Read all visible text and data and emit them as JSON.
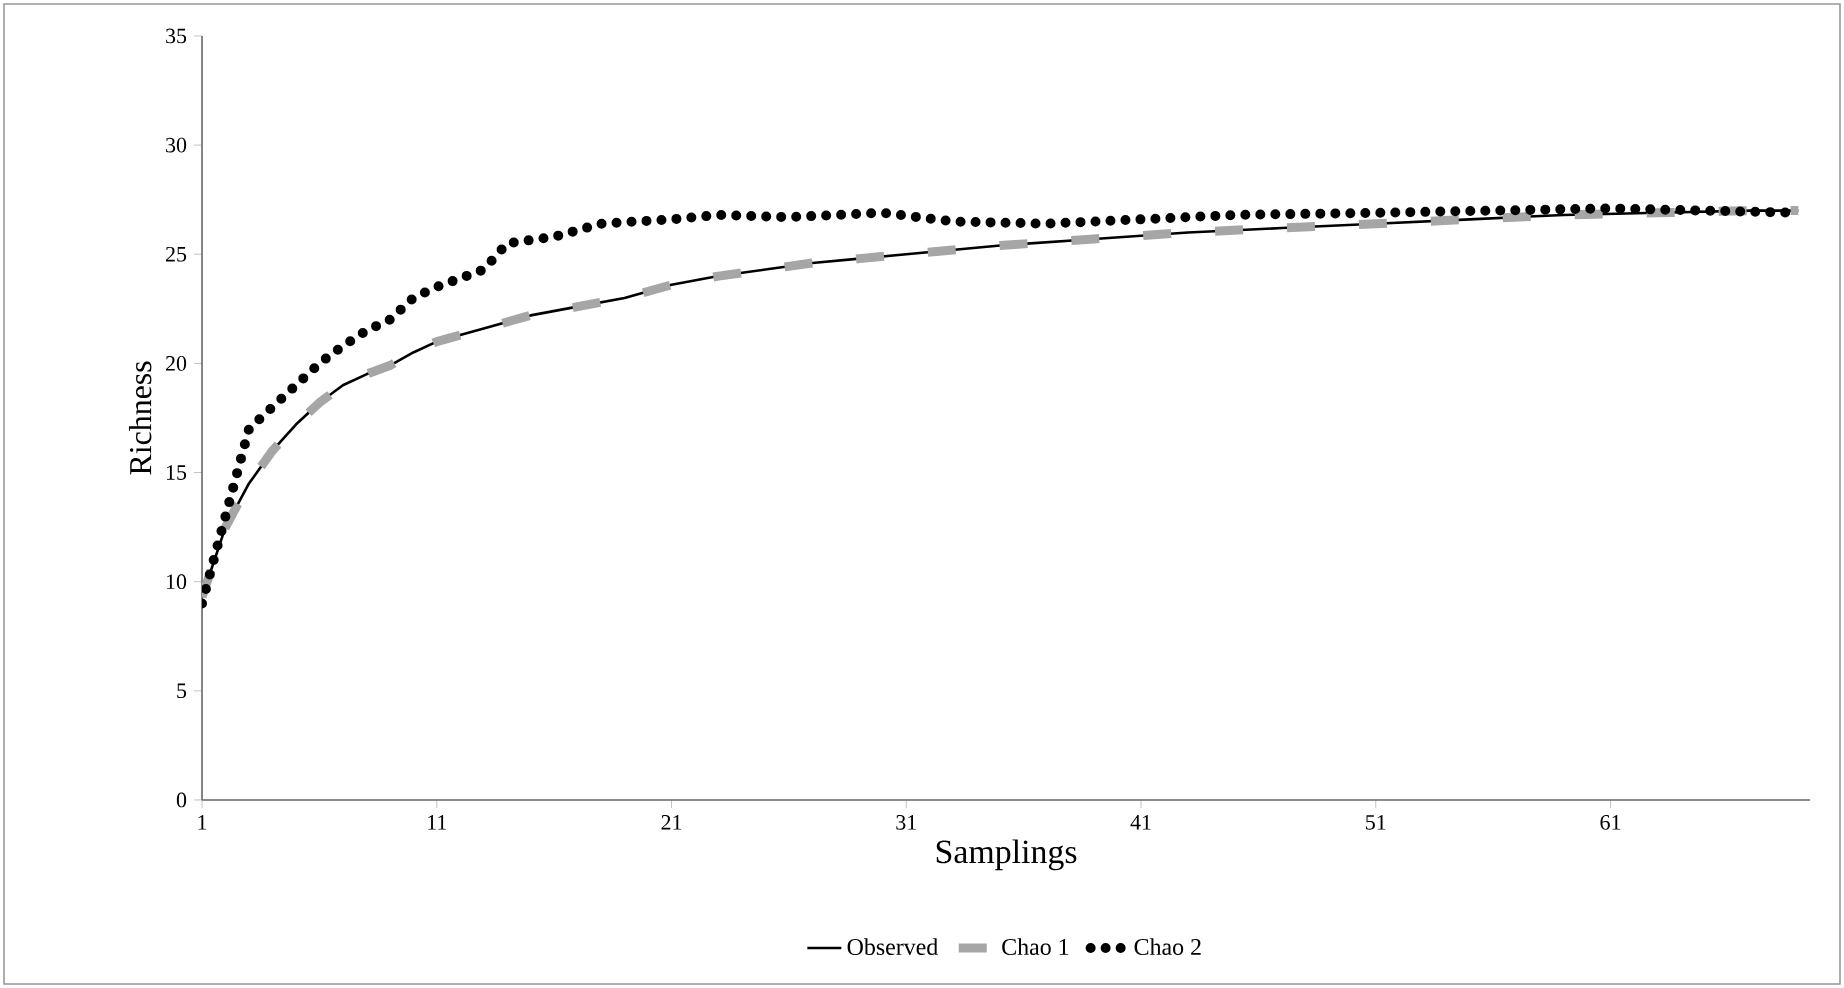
{
  "chart_data": {
    "type": "line",
    "xlabel": "Samplings",
    "ylabel": "Richness",
    "xlim": [
      1,
      69.5
    ],
    "xticks": [
      1,
      11,
      21,
      31,
      41,
      51,
      61
    ],
    "ylim": [
      0,
      35
    ],
    "yticks": [
      0,
      5,
      10,
      15,
      20,
      25,
      30,
      35
    ],
    "grid": false,
    "legend": "bottom",
    "marker": "none",
    "series": [
      {
        "name": "Observed",
        "color": "#000000",
        "line_style": "solid",
        "x": [
          1,
          2,
          3,
          4,
          5,
          6,
          7,
          8,
          9,
          10,
          11,
          13,
          15,
          17,
          19,
          21,
          23,
          25,
          27,
          29,
          31,
          35,
          39,
          43,
          47,
          51,
          55,
          59,
          63,
          67,
          69
        ],
        "values": [
          9.3,
          12.5,
          14.5,
          16,
          17.2,
          18.2,
          19,
          19.5,
          19.9,
          20.5,
          21,
          21.6,
          22.2,
          22.6,
          23,
          23.6,
          24,
          24.3,
          24.6,
          24.8,
          25,
          25.4,
          25.7,
          26,
          26.2,
          26.4,
          26.6,
          26.8,
          26.9,
          27,
          27
        ]
      },
      {
        "name": "Chao 1",
        "color": "#a6a6a6",
        "line_style": "dashed",
        "x": [
          1,
          2,
          3,
          4,
          5,
          6,
          7,
          8,
          9,
          10,
          11,
          13,
          15,
          17,
          19,
          21,
          23,
          25,
          27,
          29,
          31,
          35,
          39,
          43,
          47,
          51,
          55,
          59,
          63,
          67,
          69
        ],
        "values": [
          9.3,
          12.5,
          14.5,
          16,
          17.2,
          18.2,
          19,
          19.5,
          19.9,
          20.5,
          21,
          21.6,
          22.2,
          22.6,
          23,
          23.6,
          24,
          24.3,
          24.6,
          24.8,
          25,
          25.4,
          25.7,
          26,
          26.2,
          26.4,
          26.6,
          26.8,
          26.9,
          27,
          27
        ]
      },
      {
        "name": "Chao 2",
        "color": "#000000",
        "line_style": "dotted",
        "x": [
          1,
          1.5,
          2,
          2.5,
          3,
          4,
          5,
          6,
          7,
          8,
          9,
          10,
          11,
          13,
          14,
          16,
          18,
          21,
          23,
          26,
          30,
          33,
          37,
          41,
          45,
          51,
          56,
          61,
          65,
          69
        ],
        "values": [
          9,
          11,
          13,
          15,
          17,
          18,
          19,
          20,
          20.8,
          21.5,
          22,
          23,
          23.5,
          24.3,
          25.5,
          25.8,
          26.4,
          26.6,
          26.8,
          26.7,
          26.9,
          26.5,
          26.4,
          26.6,
          26.8,
          26.9,
          27,
          27.1,
          27,
          26.9
        ]
      }
    ]
  }
}
